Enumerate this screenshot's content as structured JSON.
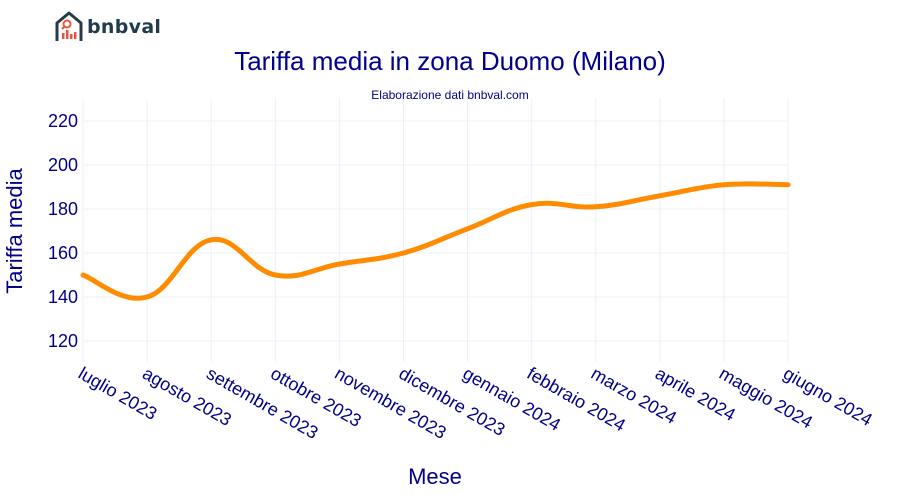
{
  "brand": {
    "name": "bnbval"
  },
  "chart_data": {
    "type": "line",
    "title": "Tariffa media in zona Duomo (Milano)",
    "subtitle": "Elaborazione dati bnbval.com",
    "xlabel": "Mese",
    "ylabel": "Tariffa media",
    "categories": [
      "luglio 2023",
      "agosto 2023",
      "settembre 2023",
      "ottobre 2023",
      "novembre 2023",
      "dicembre 2023",
      "gennaio 2024",
      "febbraio 2024",
      "marzo 2024",
      "aprile 2024",
      "maggio 2024",
      "giugno 2024"
    ],
    "series": [
      {
        "values": [
          150,
          140,
          166,
          150,
          155,
          160,
          171,
          182,
          181,
          186,
          191,
          191
        ],
        "color": "#ff8c00"
      }
    ],
    "ylim": [
      112,
      228
    ],
    "yticks": [
      120,
      140,
      160,
      180,
      200,
      220
    ],
    "grid": true,
    "line_shape": "spline",
    "colors": {
      "text": "#00008b",
      "grid": "#ebf0f8"
    }
  }
}
